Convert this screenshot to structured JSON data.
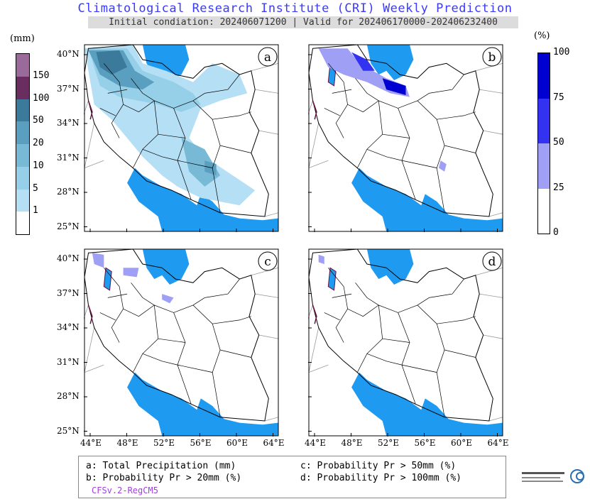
{
  "header": {
    "title": "Climatological Research Institute (CRI) Weekly Prediction",
    "subtitle": "Initial condiation: 202406071200 | Valid for 202406170000-202406232400"
  },
  "precip_colorbar": {
    "unit": "(mm)",
    "levels": [
      "1",
      "5",
      "10",
      "20",
      "50",
      "100",
      "150"
    ],
    "colors": [
      "#ffffff",
      "#b5dff5",
      "#96cfe8",
      "#78b9d6",
      "#5a9fc0",
      "#3b7a9a",
      "#6a2d60",
      "#9a6a9a"
    ]
  },
  "prob_colorbar": {
    "unit": "(%)",
    "levels": [
      "0",
      "25",
      "50",
      "75",
      "100"
    ],
    "colors": [
      "#ffffff",
      "#9f9ff5",
      "#3232f0",
      "#0000d0"
    ]
  },
  "map_axes": {
    "lat_labels": [
      "40°N",
      "37°N",
      "34°N",
      "31°N",
      "28°N",
      "25°N"
    ],
    "lon_labels": [
      "44°E",
      "48°E",
      "52°E",
      "56°E",
      "60°E",
      "64°E"
    ]
  },
  "panels": [
    {
      "letter": "a"
    },
    {
      "letter": "b"
    },
    {
      "letter": "c"
    },
    {
      "letter": "d"
    }
  ],
  "legend": {
    "a": "a: Total Precipitation (mm)",
    "b": "b: Probability Pr > 20mm (%)",
    "c": "c: Probability Pr > 50mm (%)",
    "d": "d: Probability Pr > 100mm (%)",
    "model": "CFSv.2-RegCM5"
  },
  "colors": {
    "water": "#1e9af0",
    "border": "#000000",
    "title": "#3a3aff"
  }
}
